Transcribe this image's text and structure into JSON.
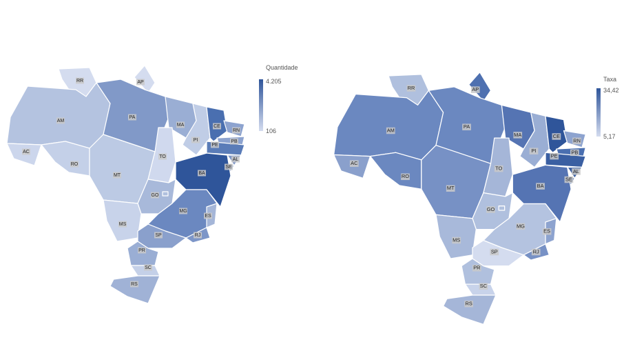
{
  "maps": [
    {
      "legend": {
        "title": "Quantidade",
        "max": "4.205",
        "min": "106",
        "max_color": "#2f559a",
        "min_color": "#d4dcef"
      },
      "states": [
        {
          "label": "RR",
          "color": "#d4dcef"
        },
        {
          "label": "AP",
          "color": "#d4dcef"
        },
        {
          "label": "AM",
          "color": "#b4c3e0"
        },
        {
          "label": "AC",
          "color": "#ccd6ec"
        },
        {
          "label": "RO",
          "color": "#c4d0e8"
        },
        {
          "label": "PA",
          "color": "#8199c8"
        },
        {
          "label": "MT",
          "color": "#bccae4"
        },
        {
          "label": "MA",
          "color": "#9aaed4"
        },
        {
          "label": "TO",
          "color": "#d0d9ee"
        },
        {
          "label": "PI",
          "color": "#c0cde6"
        },
        {
          "label": "CE",
          "color": "#4a6fb0"
        },
        {
          "label": "RN",
          "color": "#8da3cf"
        },
        {
          "label": "PB",
          "color": "#8da3cf"
        },
        {
          "label": "PE",
          "color": "#5a7cb8"
        },
        {
          "label": "AL",
          "color": "#7e96c6"
        },
        {
          "label": "SE",
          "color": "#9aaed4"
        },
        {
          "label": "BA",
          "color": "#2f559a"
        },
        {
          "label": "GO",
          "color": "#a8b9da"
        },
        {
          "label": "MS",
          "color": "#c8d3ea"
        },
        {
          "label": "MG",
          "color": "#6b88c0"
        },
        {
          "label": "ES",
          "color": "#a5b6d8"
        },
        {
          "label": "RJ",
          "color": "#7d96c8"
        },
        {
          "label": "SP",
          "color": "#8aa0cc"
        },
        {
          "label": "PR",
          "color": "#9aaed4"
        },
        {
          "label": "SC",
          "color": "#c4d0e8"
        },
        {
          "label": "RS",
          "color": "#a0b2d6"
        },
        {
          "color": "#b0c0de"
        }
      ]
    },
    {
      "legend": {
        "title": "Taxa",
        "max": "34,42",
        "min": "5,17",
        "max_color": "#2f559a",
        "min_color": "#d4dcef"
      },
      "states": [
        {
          "label": "RR",
          "color": "#b0c0de"
        },
        {
          "label": "AP",
          "color": "#4e70b0"
        },
        {
          "label": "AM",
          "color": "#6b88c0"
        },
        {
          "label": "AC",
          "color": "#8aa0cc"
        },
        {
          "label": "RO",
          "color": "#6b88c0"
        },
        {
          "label": "PA",
          "color": "#6b88c0"
        },
        {
          "label": "MT",
          "color": "#7791c5"
        },
        {
          "label": "MA",
          "color": "#5574b3"
        },
        {
          "label": "TO",
          "color": "#a5b6d8"
        },
        {
          "label": "PI",
          "color": "#9aaed4"
        },
        {
          "label": "CE",
          "color": "#2f559a"
        },
        {
          "label": "RN",
          "color": "#8da3cf"
        },
        {
          "label": "PB",
          "color": "#4a6fb0"
        },
        {
          "label": "PE",
          "color": "#3a5fa2"
        },
        {
          "label": "AL",
          "color": "#3a5fa2"
        },
        {
          "label": "SE",
          "color": "#4a6fb0"
        },
        {
          "label": "BA",
          "color": "#5574b3"
        },
        {
          "label": "GO",
          "color": "#b0c0de"
        },
        {
          "label": "MS",
          "color": "#a8b9da"
        },
        {
          "label": "MG",
          "color": "#b4c3e0"
        },
        {
          "label": "ES",
          "color": "#8da3cf"
        },
        {
          "label": "RJ",
          "color": "#7791c5"
        },
        {
          "label": "SP",
          "color": "#d4dcef"
        },
        {
          "label": "PR",
          "color": "#b0c0de"
        },
        {
          "label": "SC",
          "color": "#c8d3ea"
        },
        {
          "label": "RS",
          "color": "#a5b6d8"
        },
        {
          "color": "#b0c0de"
        }
      ]
    }
  ]
}
